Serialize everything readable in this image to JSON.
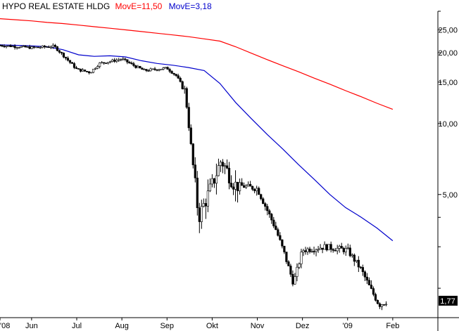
{
  "chart_data": {
    "type": "candlestick",
    "title": "HYPO REAL ESTATE HLDG",
    "moving_averages": [
      {
        "name": "MovE=11,50",
        "color": "#ff0000",
        "values": [
          27.9,
          27.6,
          27.3,
          26.9,
          26.6,
          26.2,
          25.8,
          25.4,
          25.0,
          24.6,
          24.2,
          23.8,
          23.4,
          22.9,
          22.4,
          21.2,
          19.9,
          18.7,
          17.6,
          16.6,
          15.6,
          14.7,
          13.8,
          13.0,
          12.2,
          11.5
        ]
      },
      {
        "name": "MovE=3,18",
        "color": "#0000cc",
        "values": [
          21.6,
          21.5,
          21.4,
          21.2,
          20.6,
          19.6,
          19.3,
          19.4,
          19.2,
          18.5,
          18.0,
          17.7,
          17.3,
          16.8,
          14.8,
          12.3,
          10.5,
          9.0,
          7.8,
          6.7,
          5.8,
          5.0,
          4.4,
          4.0,
          3.6,
          3.18
        ]
      }
    ],
    "last_value": "1,77",
    "last_value_color": "#000000",
    "y_scale": "log",
    "ylim": [
      1.5,
      30
    ],
    "y_ticks": [
      {
        "value": 25,
        "label": "25,00"
      },
      {
        "value": 20,
        "label": "20,00"
      },
      {
        "value": 15,
        "label": "15,00"
      },
      {
        "value": 10,
        "label": "10,00"
      },
      {
        "value": 5,
        "label": "5,00"
      }
    ],
    "y_minor_ticks": [
      30,
      4,
      3,
      2
    ],
    "x_ticks": [
      "'08",
      "Jun",
      "Jul",
      "Aug",
      "Sep",
      "Okt",
      "Nov",
      "Dez",
      "'09",
      "Feb"
    ],
    "x_range_months": [
      4.8,
      14.5
    ],
    "x_tick_positions_months": [
      4.8,
      5.5,
      6.5,
      7.5,
      8.5,
      9.5,
      10.5,
      11.5,
      12.5,
      13.5
    ],
    "price_path": [
      {
        "m": 4.8,
        "v": 21.5
      },
      {
        "m": 5.5,
        "v": 21.0
      },
      {
        "m": 6.0,
        "v": 21.3
      },
      {
        "m": 6.2,
        "v": 19.5
      },
      {
        "m": 6.5,
        "v": 17.0
      },
      {
        "m": 6.8,
        "v": 16.5
      },
      {
        "m": 7.0,
        "v": 18.0
      },
      {
        "m": 7.5,
        "v": 18.8
      },
      {
        "m": 7.8,
        "v": 17.5
      },
      {
        "m": 8.0,
        "v": 16.8
      },
      {
        "m": 8.5,
        "v": 17.2
      },
      {
        "m": 8.7,
        "v": 16.0
      },
      {
        "m": 8.9,
        "v": 13.8
      },
      {
        "m": 9.2,
        "v": 4.0
      },
      {
        "m": 9.5,
        "v": 5.5
      },
      {
        "m": 9.7,
        "v": 7.0
      },
      {
        "m": 10.0,
        "v": 5.5
      },
      {
        "m": 10.5,
        "v": 5.3
      },
      {
        "m": 10.9,
        "v": 3.6
      },
      {
        "m": 11.1,
        "v": 2.8
      },
      {
        "m": 11.3,
        "v": 2.1
      },
      {
        "m": 11.5,
        "v": 2.9
      },
      {
        "m": 12.0,
        "v": 3.0
      },
      {
        "m": 12.5,
        "v": 2.9
      },
      {
        "m": 12.8,
        "v": 2.4
      },
      {
        "m": 13.0,
        "v": 2.0
      },
      {
        "m": 13.2,
        "v": 1.7
      },
      {
        "m": 13.4,
        "v": 1.77
      }
    ],
    "grid": false,
    "legend": "top-left"
  }
}
